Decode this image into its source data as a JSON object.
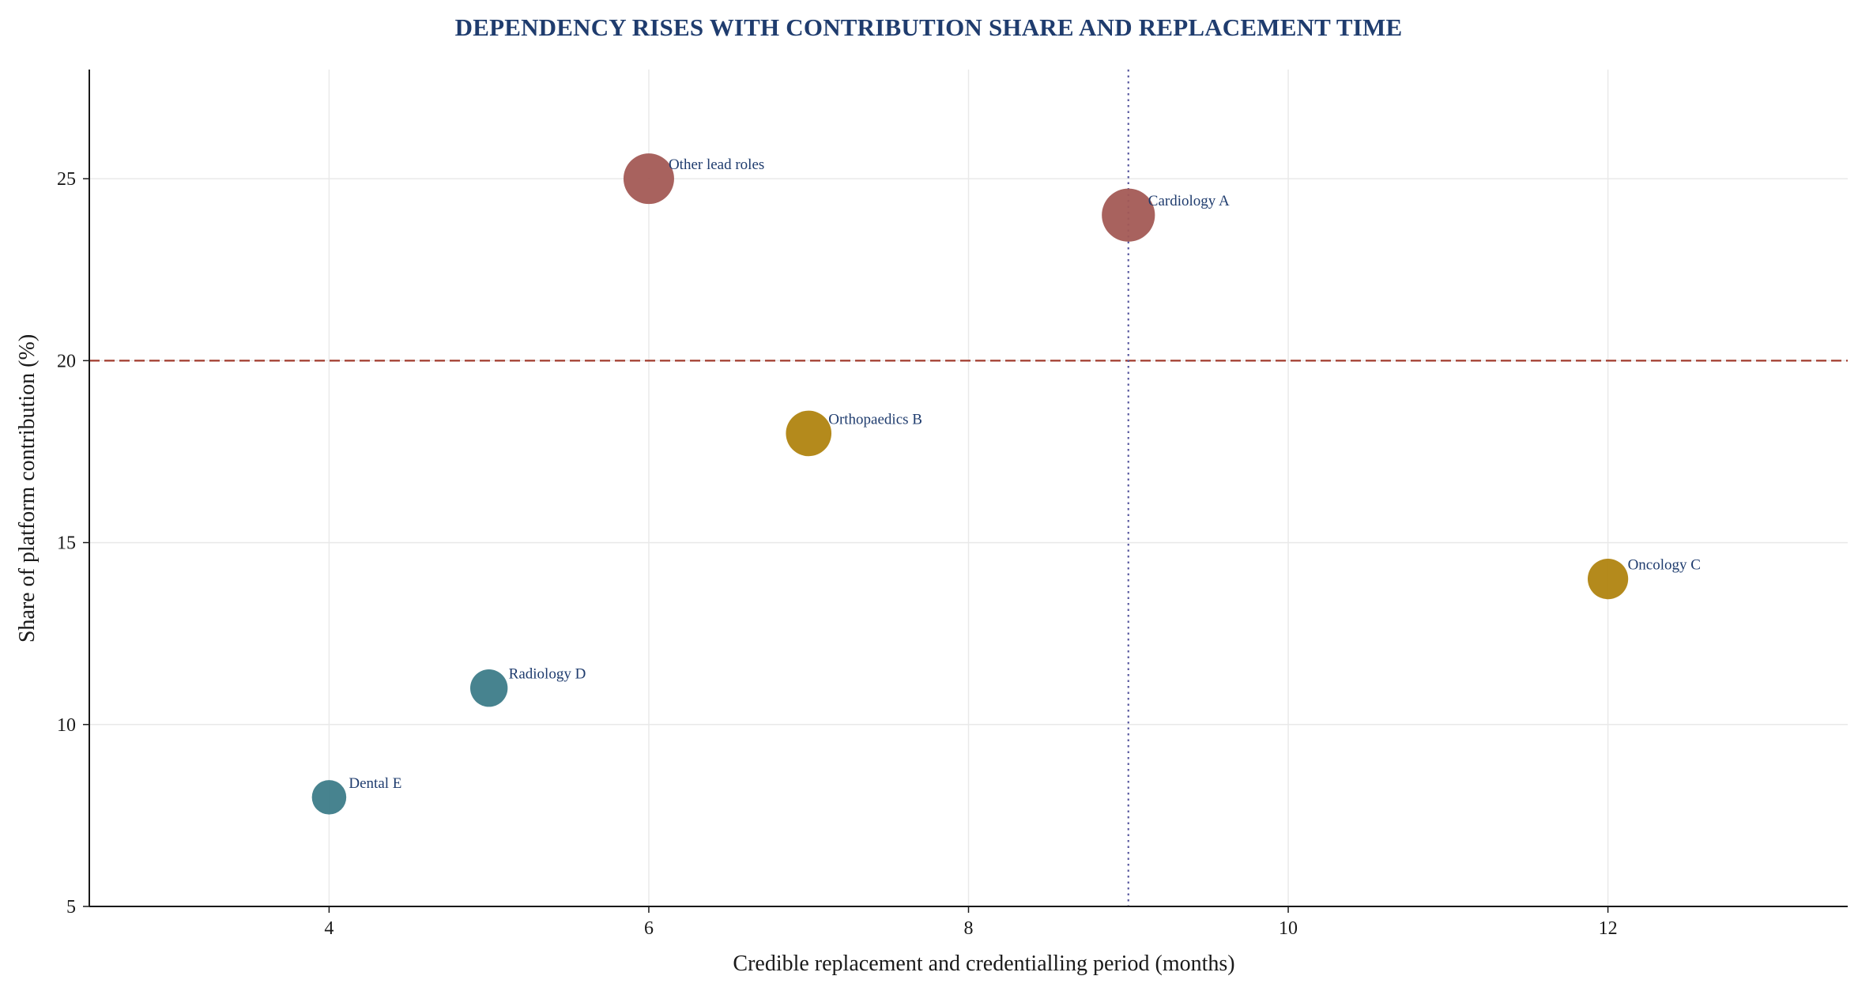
{
  "chart_data": {
    "type": "scatter",
    "title": "DEPENDENCY RISES WITH CONTRIBUTION SHARE AND REPLACEMENT TIME",
    "xlabel": "Credible replacement and credentialling period (months)",
    "ylabel": "Share of platform contribution (%)",
    "xlim": [
      2.5,
      13.5
    ],
    "ylim": [
      5,
      28
    ],
    "xticks": [
      4,
      6,
      8,
      10,
      12
    ],
    "yticks": [
      5,
      10,
      15,
      20,
      25
    ],
    "grid": true,
    "legend": "none",
    "reference_lines": {
      "horizontal": {
        "y": 20,
        "style": "dashed",
        "color": "#a03a2c"
      },
      "vertical": {
        "x": 9,
        "style": "dotted",
        "color": "#5a5aa0"
      }
    },
    "points": [
      {
        "label": "Other lead roles",
        "x": 6,
        "y": 25,
        "size": 1.0,
        "color": "#a35a55"
      },
      {
        "label": "Cardiology A",
        "x": 9,
        "y": 24,
        "size": 1.05,
        "color": "#a35a55"
      },
      {
        "label": "Orthopaedics B",
        "x": 7,
        "y": 18,
        "size": 0.9,
        "color": "#b08410"
      },
      {
        "label": "Oncology C",
        "x": 12,
        "y": 14,
        "size": 0.8,
        "color": "#b08410"
      },
      {
        "label": "Radiology D",
        "x": 5,
        "y": 11,
        "size": 0.74,
        "color": "#3d7c89"
      },
      {
        "label": "Dental E",
        "x": 4,
        "y": 8,
        "size": 0.68,
        "color": "#3d7c89"
      }
    ],
    "colors": {
      "title": "#1f3c6e",
      "label": "#1f3c6e",
      "axis": "#1a1a1a"
    }
  }
}
